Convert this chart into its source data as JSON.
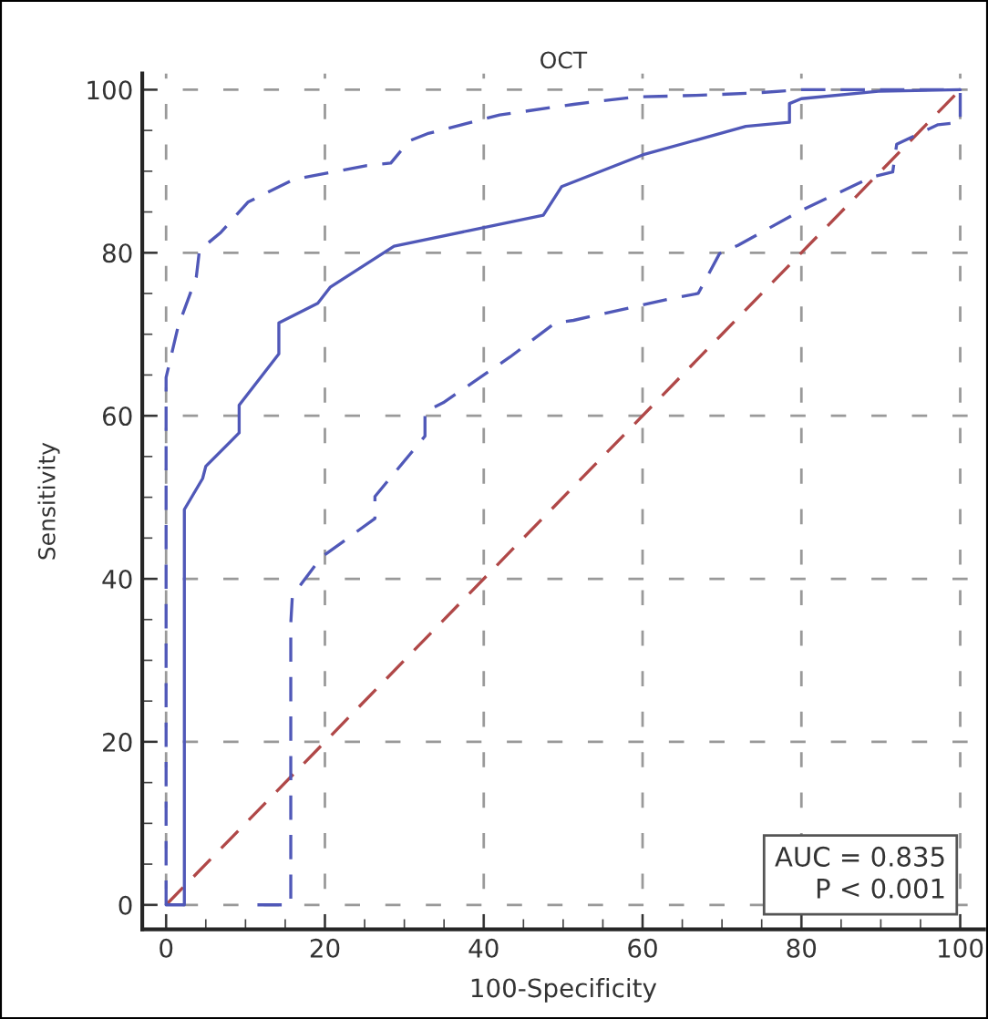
{
  "chart_data": {
    "type": "line",
    "title": "OCT",
    "xlabel": "100-Specificity",
    "ylabel": "Sensitivity",
    "xlim": [
      -3,
      103
    ],
    "ylim": [
      -3,
      102
    ],
    "xticks": [
      0,
      20,
      40,
      60,
      80,
      100
    ],
    "yticks": [
      0,
      20,
      40,
      60,
      80,
      100
    ],
    "grid": true,
    "legend": false,
    "annotations": [
      "AUC = 0.835\nP < 0.001"
    ],
    "series": [
      {
        "color": "#b04848",
        "line_style": "dashed",
        "x": [
          0,
          100
        ],
        "values": [
          0,
          100
        ]
      },
      {
        "color": "#5058b8",
        "line_style": "dashed",
        "x": [
          11.5,
          15.7,
          15.7,
          15.9,
          19.5,
          22.2,
          26.3,
          26.3,
          32.6,
          32.6,
          34.9,
          43.3,
          49,
          51.3,
          63.2,
          67,
          69.7,
          72,
          80,
          88.9,
          91.5,
          92,
          97.2,
          100,
          100
        ],
        "values": [
          0,
          0,
          34.5,
          37.9,
          42.6,
          44.5,
          47.4,
          50.1,
          57.5,
          60.5,
          61.6,
          67.2,
          71.4,
          71.7,
          74.3,
          75,
          79.9,
          80.9,
          85.2,
          89.3,
          89.9,
          93.3,
          95.7,
          96,
          99.6
        ]
      },
      {
        "color": "#5058b8",
        "line_style": "solid",
        "x": [
          0,
          2.3,
          2.3,
          4.6,
          5,
          9.2,
          9.2,
          14.2,
          14.2,
          19.1,
          20.7,
          28.7,
          47.5,
          49.8,
          60,
          73,
          78.5,
          78.5,
          80,
          89.7,
          100
        ],
        "values": [
          0,
          0,
          48.5,
          52.3,
          53.8,
          57.9,
          61.3,
          67.6,
          71.4,
          73.8,
          75.8,
          80.8,
          84.6,
          88.1,
          92,
          95.5,
          96,
          98.3,
          98.9,
          99.8,
          100
        ]
      },
      {
        "color": "#5058b8",
        "line_style": "dashed",
        "x": [
          0,
          0,
          1.5,
          3.8,
          4.2,
          6.9,
          10.3,
          16.1,
          25.3,
          28.3,
          30.6,
          32.9,
          42,
          51.3,
          59,
          66.7,
          74.3,
          80,
          100
        ],
        "values": [
          0,
          64.7,
          70.9,
          77,
          80.3,
          82.5,
          86.2,
          89,
          90.7,
          91,
          93.7,
          94.6,
          96.9,
          98.2,
          99.1,
          99.3,
          99.6,
          100,
          100
        ]
      }
    ]
  }
}
